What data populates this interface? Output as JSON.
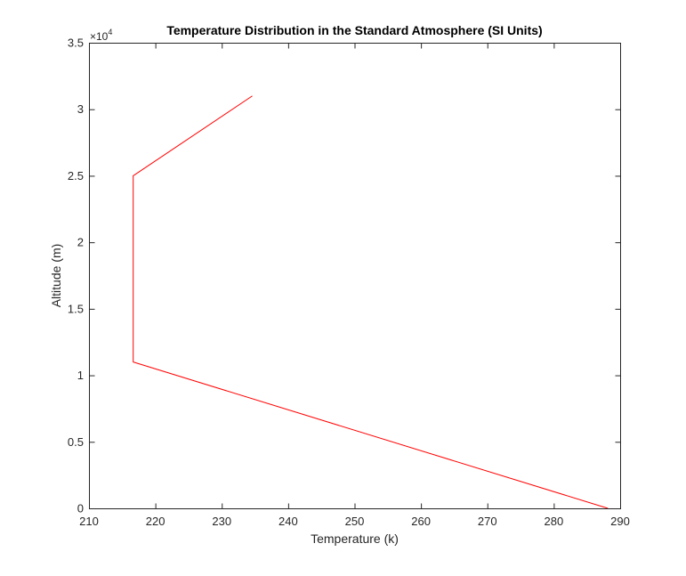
{
  "chart_data": {
    "type": "line",
    "title": "Temperature Distribution in the Standard Atmosphere (SI Units)",
    "xlabel": "Temperature (k)",
    "ylabel": "Altitude (m)",
    "xlim": [
      210,
      290
    ],
    "ylim": [
      0,
      35000
    ],
    "x_ticks": [
      210,
      220,
      230,
      240,
      250,
      260,
      270,
      280,
      290
    ],
    "x_tick_labels": [
      "210",
      "220",
      "230",
      "240",
      "250",
      "260",
      "270",
      "280",
      "290"
    ],
    "y_ticks": [
      0,
      5000,
      10000,
      15000,
      20000,
      25000,
      30000,
      35000
    ],
    "y_tick_labels": [
      "0",
      "0.5",
      "1",
      "1.5",
      "2",
      "2.5",
      "3",
      "3.5"
    ],
    "y_exponent_label": "×10",
    "y_exponent": "4",
    "grid": false,
    "legend": "none",
    "series": [
      {
        "color": "#ff0000",
        "x": [
          288.16,
          216.66,
          216.66,
          234.6
        ],
        "y": [
          0,
          11000,
          25000,
          31000
        ]
      }
    ]
  }
}
